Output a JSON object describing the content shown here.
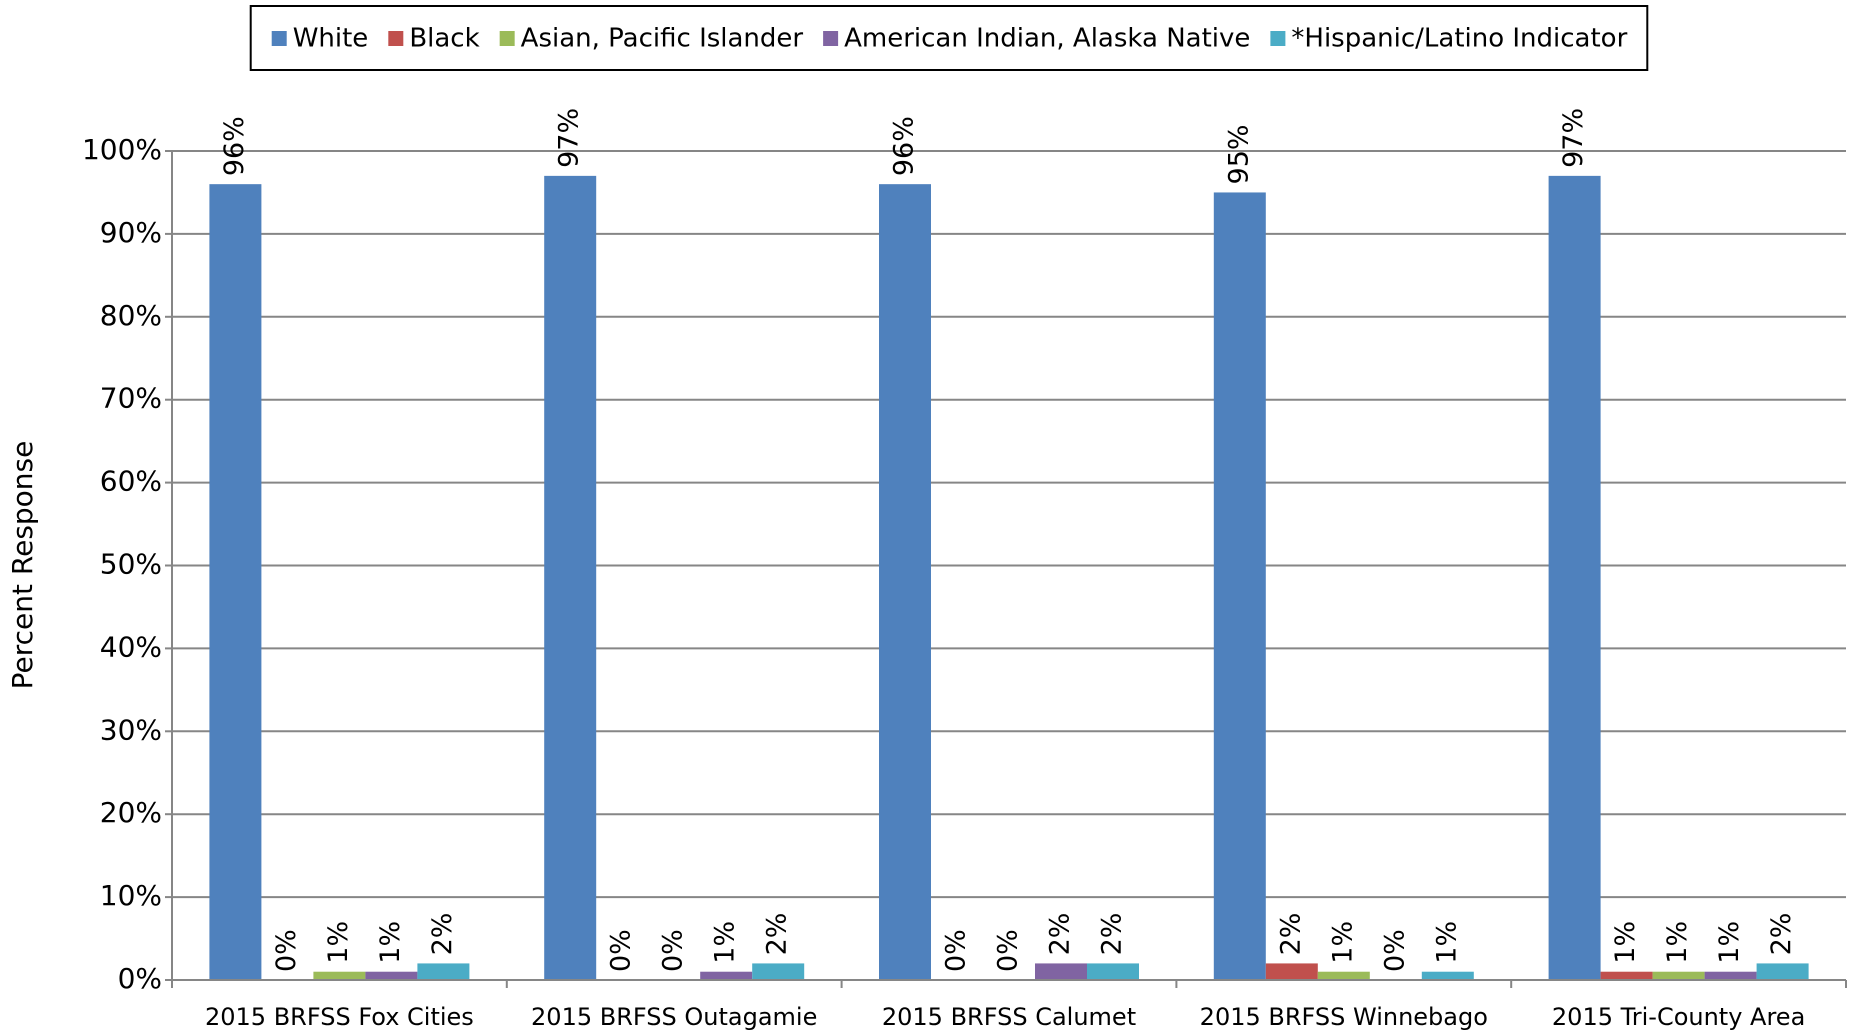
{
  "chart_data": {
    "type": "bar",
    "y_label": "Percent Response",
    "categories": [
      "2015 BRFSS Fox Cities",
      "2015 BRFSS Outagamie",
      "2015 BRFSS Calumet",
      "2015 BRFSS Winnebago",
      "2015 Tri-County Area"
    ],
    "series": [
      {
        "name": "White",
        "color": "#4f81bd",
        "values": [
          96,
          97,
          96,
          95,
          97
        ],
        "value_labels": [
          "96%",
          "97%",
          "96%",
          "95%",
          "97%"
        ]
      },
      {
        "name": "Black",
        "color": "#c0504d",
        "values": [
          0,
          0,
          0,
          2,
          1
        ],
        "value_labels": [
          "0%",
          "0%",
          "0%",
          "2%",
          "1%"
        ]
      },
      {
        "name": "Asian, Pacific Islander",
        "color": "#9bbb59",
        "values": [
          1,
          0,
          0,
          1,
          1
        ],
        "value_labels": [
          "1%",
          "0%",
          "0%",
          "1%",
          "1%"
        ]
      },
      {
        "name": "American Indian, Alaska Native",
        "color": "#8064a2",
        "values": [
          1,
          1,
          2,
          0,
          1
        ],
        "value_labels": [
          "1%",
          "1%",
          "2%",
          "0%",
          "1%"
        ]
      },
      {
        "name": "*Hispanic/Latino Indicator",
        "color": "#4bacc6",
        "values": [
          2,
          2,
          2,
          1,
          2
        ],
        "value_labels": [
          "2%",
          "2%",
          "2%",
          "1%",
          "2%"
        ]
      }
    ],
    "ylim": [
      0,
      100
    ],
    "yticks": [
      {
        "value": 0,
        "label": "0%"
      },
      {
        "value": 10,
        "label": "10%"
      },
      {
        "value": 20,
        "label": "20%"
      },
      {
        "value": 30,
        "label": "30%"
      },
      {
        "value": 40,
        "label": "40%"
      },
      {
        "value": 50,
        "label": "50%"
      },
      {
        "value": 60,
        "label": "60%"
      },
      {
        "value": 70,
        "label": "70%"
      },
      {
        "value": 80,
        "label": "80%"
      },
      {
        "value": 90,
        "label": "90%"
      },
      {
        "value": 100,
        "label": "100%"
      }
    ],
    "grid": true,
    "legend": "top"
  }
}
